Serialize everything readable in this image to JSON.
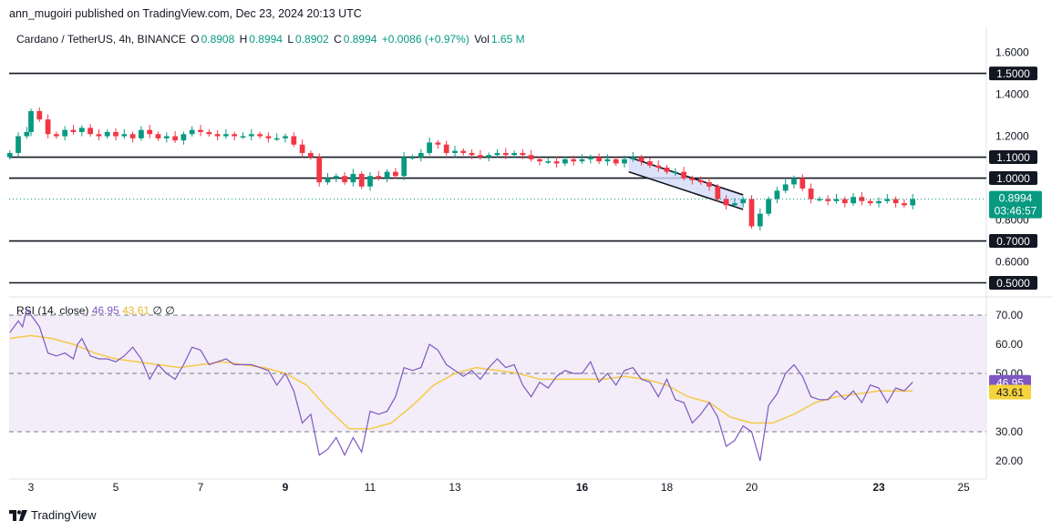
{
  "header": {
    "published": "ann_mugoiri published on TradingView.com, Dec 23, 2024 20:13 UTC"
  },
  "legend": {
    "symbol": "Cardano / TetherUS, 4h, BINANCE",
    "o_label": "O",
    "o_value": "0.8908",
    "h_label": "H",
    "h_value": "0.8994",
    "l_label": "L",
    "l_value": "0.8902",
    "c_label": "C",
    "c_value": "0.8994",
    "change": "+0.0086 (+0.97%)",
    "vol_label": "Vol",
    "vol_value": "1.65 M"
  },
  "rsi_legend": {
    "label": "RSI (14, close)",
    "rsi_value": "46.95",
    "ma_value": "43.61",
    "na1": "∅",
    "na2": "∅"
  },
  "brand": {
    "name": "TradingView"
  },
  "colors": {
    "up": "#089981",
    "down": "#f23645",
    "rsi_line": "#7e57c2",
    "rsi_ma": "#f7c948",
    "rsi_band": "#ede7f6",
    "channel_fill": "#d3dbf7"
  },
  "chart_data": [
    {
      "type": "candlestick",
      "title": "Cardano / TetherUS, 4h, BINANCE",
      "ylim": [
        0.45,
        1.72
      ],
      "y_ticks": [
        "1.6000",
        "1.4000",
        "1.2000",
        "0.8000",
        "0.6000"
      ],
      "horizontal_levels": [
        "1.5000",
        "1.1000",
        "1.0000",
        "0.7000",
        "0.5000"
      ],
      "last_price": "0.8994",
      "countdown": "03:46:57",
      "x_ticks": [
        "3",
        "5",
        "7",
        "9",
        "11",
        "13",
        "16",
        "18",
        "20",
        "23",
        "25"
      ],
      "x_ticks_bold": [
        "9",
        "16",
        "23"
      ],
      "channel": {
        "start": [
          17.1,
          1.1
        ],
        "end": [
          19.8,
          0.92
        ],
        "lower_start": [
          17.1,
          1.03
        ],
        "lower_end": [
          19.8,
          0.85
        ]
      },
      "close_path": [
        [
          2.5,
          1.12
        ],
        [
          2.7,
          1.2
        ],
        [
          2.9,
          1.22
        ],
        [
          3.0,
          1.32
        ],
        [
          3.2,
          1.28
        ],
        [
          3.4,
          1.21
        ],
        [
          3.6,
          1.2
        ],
        [
          3.8,
          1.23
        ],
        [
          4.0,
          1.22
        ],
        [
          4.2,
          1.24
        ],
        [
          4.4,
          1.21
        ],
        [
          4.6,
          1.2
        ],
        [
          4.8,
          1.22
        ],
        [
          5.0,
          1.2
        ],
        [
          5.2,
          1.21
        ],
        [
          5.4,
          1.19
        ],
        [
          5.6,
          1.23
        ],
        [
          5.8,
          1.21
        ],
        [
          6.0,
          1.19
        ],
        [
          6.2,
          1.2
        ],
        [
          6.4,
          1.18
        ],
        [
          6.6,
          1.21
        ],
        [
          6.8,
          1.23
        ],
        [
          7.0,
          1.22
        ],
        [
          7.2,
          1.21
        ],
        [
          7.4,
          1.2
        ],
        [
          7.6,
          1.21
        ],
        [
          7.8,
          1.2
        ],
        [
          8.0,
          1.2
        ],
        [
          8.2,
          1.21
        ],
        [
          8.4,
          1.2
        ],
        [
          8.6,
          1.19
        ],
        [
          8.8,
          1.19
        ],
        [
          9.0,
          1.2
        ],
        [
          9.2,
          1.16
        ],
        [
          9.4,
          1.12
        ],
        [
          9.6,
          1.1
        ],
        [
          9.8,
          0.98
        ],
        [
          10.0,
          1.0
        ],
        [
          10.2,
          1.01
        ],
        [
          10.4,
          0.98
        ],
        [
          10.6,
          1.02
        ],
        [
          10.8,
          0.96
        ],
        [
          11.0,
          1.01
        ],
        [
          11.2,
          1.0
        ],
        [
          11.4,
          1.03
        ],
        [
          11.6,
          1.01
        ],
        [
          11.8,
          1.1
        ],
        [
          12.0,
          1.1
        ],
        [
          12.2,
          1.12
        ],
        [
          12.4,
          1.17
        ],
        [
          12.6,
          1.16
        ],
        [
          12.8,
          1.12
        ],
        [
          13.0,
          1.13
        ],
        [
          13.2,
          1.12
        ],
        [
          13.4,
          1.11
        ],
        [
          13.6,
          1.1
        ],
        [
          13.8,
          1.11
        ],
        [
          14.0,
          1.12
        ],
        [
          14.2,
          1.11
        ],
        [
          14.4,
          1.12
        ],
        [
          14.6,
          1.11
        ],
        [
          14.8,
          1.09
        ],
        [
          15.0,
          1.08
        ],
        [
          15.2,
          1.08
        ],
        [
          15.4,
          1.07
        ],
        [
          15.6,
          1.09
        ],
        [
          15.8,
          1.08
        ],
        [
          16.0,
          1.09
        ],
        [
          16.2,
          1.1
        ],
        [
          16.4,
          1.08
        ],
        [
          16.6,
          1.09
        ],
        [
          16.8,
          1.07
        ],
        [
          17.0,
          1.09
        ],
        [
          17.2,
          1.1
        ],
        [
          17.4,
          1.08
        ],
        [
          17.6,
          1.06
        ],
        [
          17.8,
          1.05
        ],
        [
          18.0,
          1.03
        ],
        [
          18.2,
          1.03
        ],
        [
          18.4,
          1.0
        ],
        [
          18.6,
          0.99
        ],
        [
          18.8,
          0.98
        ],
        [
          19.0,
          0.96
        ],
        [
          19.2,
          0.9
        ],
        [
          19.4,
          0.87
        ],
        [
          19.6,
          0.88
        ],
        [
          19.8,
          0.9
        ],
        [
          20.0,
          0.77
        ],
        [
          20.2,
          0.83
        ],
        [
          20.4,
          0.9
        ],
        [
          20.6,
          0.94
        ],
        [
          20.8,
          0.97
        ],
        [
          21.0,
          1.0
        ],
        [
          21.2,
          0.95
        ],
        [
          21.4,
          0.9
        ],
        [
          21.6,
          0.9
        ],
        [
          21.8,
          0.89
        ],
        [
          22.0,
          0.9
        ],
        [
          22.2,
          0.88
        ],
        [
          22.4,
          0.91
        ],
        [
          22.6,
          0.89
        ],
        [
          22.8,
          0.88
        ],
        [
          23.0,
          0.89
        ],
        [
          23.2,
          0.9
        ],
        [
          23.4,
          0.88
        ],
        [
          23.6,
          0.87
        ],
        [
          23.8,
          0.9
        ]
      ]
    },
    {
      "type": "line",
      "title": "RSI (14, close)",
      "ylim": [
        15,
        75
      ],
      "y_ticks": [
        "70.00",
        "60.00",
        "50.00",
        "30.00",
        "20.00"
      ],
      "band": [
        30,
        70
      ],
      "midline": 50,
      "current_rsi": "46.95",
      "current_ma": "43.61",
      "series": [
        {
          "name": "RSI",
          "points": [
            [
              2.5,
              64
            ],
            [
              2.7,
              68
            ],
            [
              2.8,
              66
            ],
            [
              2.9,
              72
            ],
            [
              3.1,
              68
            ],
            [
              3.2,
              66
            ],
            [
              3.4,
              57
            ],
            [
              3.6,
              56
            ],
            [
              3.8,
              57
            ],
            [
              4.0,
              55
            ],
            [
              4.1,
              60
            ],
            [
              4.2,
              62
            ],
            [
              4.4,
              56
            ],
            [
              4.6,
              55
            ],
            [
              4.8,
              55
            ],
            [
              5.0,
              54
            ],
            [
              5.2,
              56
            ],
            [
              5.4,
              59
            ],
            [
              5.6,
              55
            ],
            [
              5.8,
              48
            ],
            [
              6.0,
              53
            ],
            [
              6.2,
              50
            ],
            [
              6.4,
              48
            ],
            [
              6.6,
              53
            ],
            [
              6.8,
              59
            ],
            [
              7.0,
              58
            ],
            [
              7.2,
              53
            ],
            [
              7.4,
              54
            ],
            [
              7.6,
              55
            ],
            [
              7.8,
              53
            ],
            [
              8.0,
              53
            ],
            [
              8.2,
              53
            ],
            [
              8.4,
              52
            ],
            [
              8.6,
              51
            ],
            [
              8.8,
              46
            ],
            [
              9.0,
              50
            ],
            [
              9.2,
              44
            ],
            [
              9.4,
              33
            ],
            [
              9.6,
              36
            ],
            [
              9.8,
              22
            ],
            [
              10.0,
              24
            ],
            [
              10.2,
              28
            ],
            [
              10.4,
              22
            ],
            [
              10.6,
              28
            ],
            [
              10.8,
              23
            ],
            [
              11.0,
              37
            ],
            [
              11.2,
              36
            ],
            [
              11.4,
              37
            ],
            [
              11.6,
              42
            ],
            [
              11.8,
              52
            ],
            [
              12.0,
              51
            ],
            [
              12.2,
              52
            ],
            [
              12.4,
              60
            ],
            [
              12.6,
              58
            ],
            [
              12.8,
              53
            ],
            [
              13.0,
              51
            ],
            [
              13.2,
              49
            ],
            [
              13.4,
              51
            ],
            [
              13.6,
              48
            ],
            [
              13.8,
              52
            ],
            [
              14.0,
              55
            ],
            [
              14.2,
              52
            ],
            [
              14.4,
              53
            ],
            [
              14.6,
              46
            ],
            [
              14.8,
              42
            ],
            [
              15.0,
              47
            ],
            [
              15.2,
              45
            ],
            [
              15.4,
              49
            ],
            [
              15.6,
              51
            ],
            [
              15.8,
              50
            ],
            [
              16.0,
              50
            ],
            [
              16.2,
              54
            ],
            [
              16.4,
              47
            ],
            [
              16.6,
              50
            ],
            [
              16.8,
              46
            ],
            [
              17.0,
              51
            ],
            [
              17.2,
              52
            ],
            [
              17.4,
              48
            ],
            [
              17.6,
              47
            ],
            [
              17.8,
              42
            ],
            [
              18.0,
              48
            ],
            [
              18.2,
              41
            ],
            [
              18.4,
              40
            ],
            [
              18.6,
              33
            ],
            [
              18.8,
              36
            ],
            [
              19.0,
              40
            ],
            [
              19.2,
              35
            ],
            [
              19.4,
              25
            ],
            [
              19.6,
              27
            ],
            [
              19.8,
              32
            ],
            [
              20.0,
              30
            ],
            [
              20.2,
              20
            ],
            [
              20.4,
              39
            ],
            [
              20.6,
              43
            ],
            [
              20.8,
              50
            ],
            [
              21.0,
              53
            ],
            [
              21.2,
              49
            ],
            [
              21.4,
              42
            ],
            [
              21.6,
              41
            ],
            [
              21.8,
              41
            ],
            [
              22.0,
              44
            ],
            [
              22.2,
              41
            ],
            [
              22.4,
              44
            ],
            [
              22.6,
              40
            ],
            [
              22.8,
              46
            ],
            [
              23.0,
              45
            ],
            [
              23.2,
              40
            ],
            [
              23.4,
              45
            ],
            [
              23.6,
              44
            ],
            [
              23.8,
              47
            ]
          ]
        },
        {
          "name": "RSI-based MA",
          "points": [
            [
              2.5,
              62
            ],
            [
              3.0,
              63
            ],
            [
              3.5,
              62
            ],
            [
              4.0,
              60
            ],
            [
              4.5,
              57
            ],
            [
              5.0,
              55
            ],
            [
              5.5,
              54
            ],
            [
              6.0,
              53
            ],
            [
              6.5,
              52
            ],
            [
              7.0,
              53
            ],
            [
              7.5,
              54
            ],
            [
              8.0,
              53
            ],
            [
              8.5,
              52
            ],
            [
              9.0,
              50
            ],
            [
              9.5,
              46
            ],
            [
              10.0,
              38
            ],
            [
              10.5,
              31
            ],
            [
              11.0,
              31
            ],
            [
              11.5,
              33
            ],
            [
              12.0,
              39
            ],
            [
              12.5,
              46
            ],
            [
              13.0,
              50
            ],
            [
              13.5,
              52
            ],
            [
              14.0,
              51
            ],
            [
              14.5,
              50
            ],
            [
              15.0,
              48
            ],
            [
              15.5,
              48
            ],
            [
              16.0,
              48
            ],
            [
              16.5,
              48
            ],
            [
              17.0,
              49
            ],
            [
              17.5,
              48
            ],
            [
              18.0,
              46
            ],
            [
              18.5,
              42
            ],
            [
              19.0,
              40
            ],
            [
              19.5,
              35
            ],
            [
              20.0,
              33
            ],
            [
              20.5,
              33
            ],
            [
              21.0,
              36
            ],
            [
              21.5,
              40
            ],
            [
              22.0,
              42
            ],
            [
              22.5,
              43
            ],
            [
              23.0,
              44
            ],
            [
              23.5,
              44
            ],
            [
              23.8,
              44
            ]
          ]
        }
      ]
    }
  ]
}
